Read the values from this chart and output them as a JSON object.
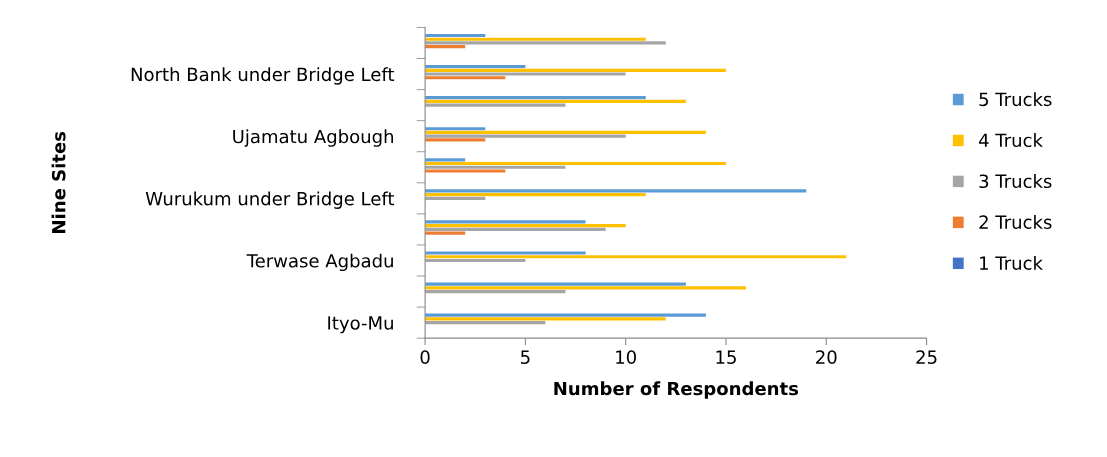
{
  "chart_data": {
    "type": "bar",
    "orientation": "horizontal",
    "xlabel": "Number of Respondents",
    "ylabel": "Nine Sites",
    "categories": [
      null,
      "North Bank under Bridge Left",
      null,
      "Ujamatu Agbough",
      null,
      "Wurukum under Bridge Left",
      null,
      "Terwase Agbadu",
      null,
      "Ityo-Mu"
    ],
    "series": [
      {
        "name": "5 Trucks",
        "color": "#5b9bd5",
        "values": [
          3,
          5,
          11,
          3,
          2,
          19,
          8,
          8,
          13,
          14
        ]
      },
      {
        "name": "4 Truck",
        "color": "#ffc000",
        "values": [
          11,
          15,
          13,
          14,
          15,
          11,
          10,
          21,
          16,
          12
        ]
      },
      {
        "name": "3 Trucks",
        "color": "#a5a5a5",
        "values": [
          12,
          10,
          7,
          10,
          7,
          3,
          9,
          5,
          7,
          6
        ]
      },
      {
        "name": "2 Trucks",
        "color": "#ed7d31",
        "values": [
          2,
          4,
          0,
          3,
          4,
          0,
          2,
          0,
          0,
          0
        ]
      },
      {
        "name": "1 Truck",
        "color": "#4472c4",
        "values": [
          0,
          0,
          0,
          0,
          0,
          0,
          0,
          0,
          0,
          0
        ]
      }
    ],
    "xlim": [
      0,
      25
    ],
    "xticks": [
      0,
      5,
      10,
      15,
      20,
      25
    ],
    "grid": false,
    "legend": "right"
  }
}
